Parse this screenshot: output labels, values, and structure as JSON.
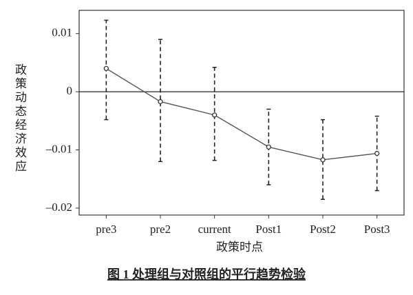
{
  "chart_data": {
    "type": "errorbar",
    "ylabel": "政策动态经济效应",
    "xlabel": "政策时点",
    "caption": "图 1  处理组与对照组的平行趋势检验",
    "categories": [
      "pre3",
      "pre2",
      "current",
      "Post1",
      "Post2",
      "Post3"
    ],
    "values": [
      0.004,
      -0.0017,
      -0.004,
      -0.0095,
      -0.0117,
      -0.0106
    ],
    "lower": [
      -0.0048,
      -0.012,
      -0.0118,
      -0.016,
      -0.0185,
      -0.017
    ],
    "upper": [
      0.0123,
      0.009,
      0.0042,
      -0.003,
      -0.0048,
      -0.0042
    ],
    "color": "#555555",
    "ylim": [
      -0.0212,
      0.014
    ],
    "yticks": [
      {
        "value": 0.01,
        "label": "0.01"
      },
      0,
      {
        "value": -0.01,
        "label": "–0.01"
      },
      {
        "value": -0.02,
        "label": "–0.02"
      }
    ],
    "hline": 0
  }
}
